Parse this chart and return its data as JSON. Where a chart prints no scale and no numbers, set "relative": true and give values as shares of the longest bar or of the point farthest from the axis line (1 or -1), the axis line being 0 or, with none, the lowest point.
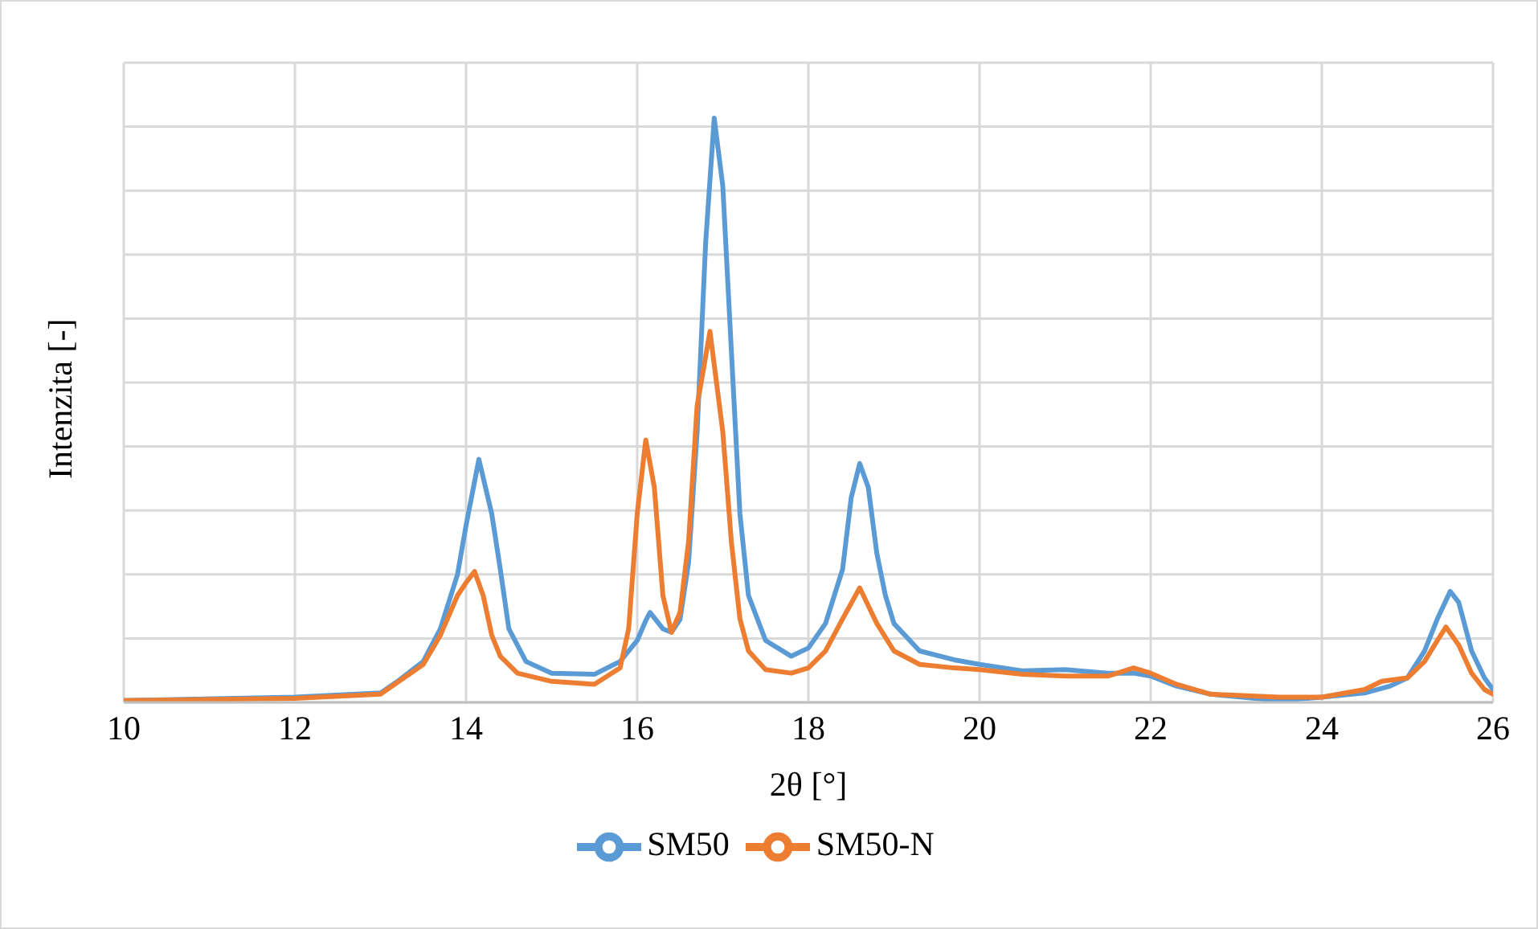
{
  "chart_data": {
    "type": "line",
    "xlabel": "2θ [°]",
    "ylabel": "Intenzita [-]",
    "relative": true,
    "xlim": [
      10,
      26
    ],
    "xticks": [
      10,
      12,
      14,
      16,
      18,
      20,
      22,
      24,
      26
    ],
    "grid": true,
    "legend": "bottom",
    "marker": "none",
    "line_style": "solid",
    "series": [
      {
        "name": "SM50",
        "color": "#5b9bd5",
        "x": [
          10,
          12,
          13,
          13.2,
          13.5,
          13.7,
          13.9,
          14,
          14.15,
          14.3,
          14.4,
          14.5,
          14.7,
          15,
          15.5,
          15.8,
          16,
          16.1,
          16.15,
          16.3,
          16.4,
          16.5,
          16.6,
          16.7,
          16.8,
          16.9,
          17,
          17.1,
          17.2,
          17.3,
          17.5,
          17.8,
          18,
          18.2,
          18.4,
          18.5,
          18.6,
          18.7,
          18.8,
          18.9,
          19,
          19.3,
          19.7,
          20,
          20.5,
          21,
          21.5,
          21.8,
          22,
          22.3,
          22.7,
          23.5,
          24,
          24.5,
          24.8,
          25,
          25.2,
          25.35,
          25.5,
          25.6,
          25.75,
          25.9,
          26
        ],
        "values": [
          0.003,
          0.009,
          0.016,
          0.036,
          0.07,
          0.126,
          0.219,
          0.303,
          0.416,
          0.323,
          0.228,
          0.126,
          0.07,
          0.05,
          0.048,
          0.07,
          0.106,
          0.14,
          0.154,
          0.126,
          0.12,
          0.142,
          0.239,
          0.463,
          0.788,
          1,
          0.884,
          0.602,
          0.323,
          0.183,
          0.106,
          0.079,
          0.093,
          0.135,
          0.228,
          0.35,
          0.409,
          0.368,
          0.255,
          0.183,
          0.135,
          0.088,
          0.073,
          0.065,
          0.054,
          0.056,
          0.05,
          0.05,
          0.045,
          0.028,
          0.014,
          0.003,
          0.009,
          0.016,
          0.028,
          0.042,
          0.088,
          0.143,
          0.19,
          0.171,
          0.088,
          0.042,
          0.022
        ]
      },
      {
        "name": "SM50-N",
        "color": "#ed7d31",
        "x": [
          10,
          12,
          13,
          13.5,
          13.7,
          13.9,
          14,
          14.1,
          14.2,
          14.3,
          14.4,
          14.6,
          15,
          15.5,
          15.8,
          15.9,
          16,
          16.1,
          16.2,
          16.3,
          16.4,
          16.5,
          16.6,
          16.7,
          16.85,
          17,
          17.1,
          17.2,
          17.3,
          17.5,
          17.8,
          18,
          18.2,
          18.4,
          18.6,
          18.8,
          19,
          19.3,
          19.7,
          20,
          20.5,
          21,
          21.5,
          21.8,
          22,
          22.3,
          22.7,
          23.5,
          24,
          24.5,
          24.7,
          25,
          25.2,
          25.35,
          25.45,
          25.6,
          25.75,
          25.9,
          26
        ],
        "values": [
          0.003,
          0.007,
          0.014,
          0.065,
          0.115,
          0.183,
          0.205,
          0.224,
          0.183,
          0.115,
          0.079,
          0.05,
          0.036,
          0.031,
          0.059,
          0.126,
          0.323,
          0.449,
          0.368,
          0.183,
          0.12,
          0.154,
          0.275,
          0.508,
          0.635,
          0.463,
          0.275,
          0.143,
          0.088,
          0.056,
          0.05,
          0.059,
          0.088,
          0.143,
          0.196,
          0.135,
          0.088,
          0.065,
          0.059,
          0.056,
          0.048,
          0.045,
          0.045,
          0.059,
          0.05,
          0.031,
          0.014,
          0.009,
          0.009,
          0.022,
          0.036,
          0.042,
          0.07,
          0.106,
          0.129,
          0.098,
          0.05,
          0.022,
          0.014
        ]
      }
    ]
  }
}
